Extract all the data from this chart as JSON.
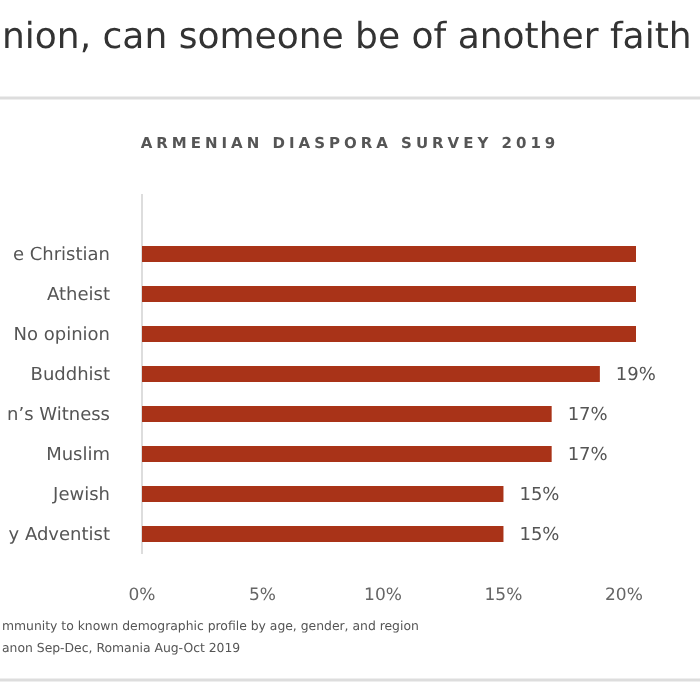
{
  "chart_data": {
    "type": "bar",
    "orientation": "horizontal",
    "title": "nion, can someone be of another faith",
    "subtitle": "ARMENIAN DIASPORA SURVEY 2019",
    "categories": [
      "e Christian",
      "Atheist",
      "No opinion",
      "Buddhist",
      "n’s Witness",
      "Muslim",
      "Jewish",
      "y Adventist"
    ],
    "values": [
      20.5,
      20.5,
      20.5,
      19,
      17,
      17,
      15,
      15
    ],
    "value_labels": [
      null,
      null,
      null,
      "19%",
      "17%",
      "17%",
      "15%",
      "15%"
    ],
    "color": "#a93318",
    "xlim": [
      0,
      20.5
    ],
    "xticks": [
      {
        "value": 0,
        "label": "0%"
      },
      {
        "value": 5,
        "label": "5%"
      },
      {
        "value": 10,
        "label": "10%"
      },
      {
        "value": 15,
        "label": "15%"
      },
      {
        "value": 20,
        "label": "20%"
      }
    ],
    "grid": false,
    "annotations": [
      "mmunity to known demographic profile by age, gender, and region",
      "anon Sep-Dec, Romania Aug-Oct 2019"
    ]
  }
}
